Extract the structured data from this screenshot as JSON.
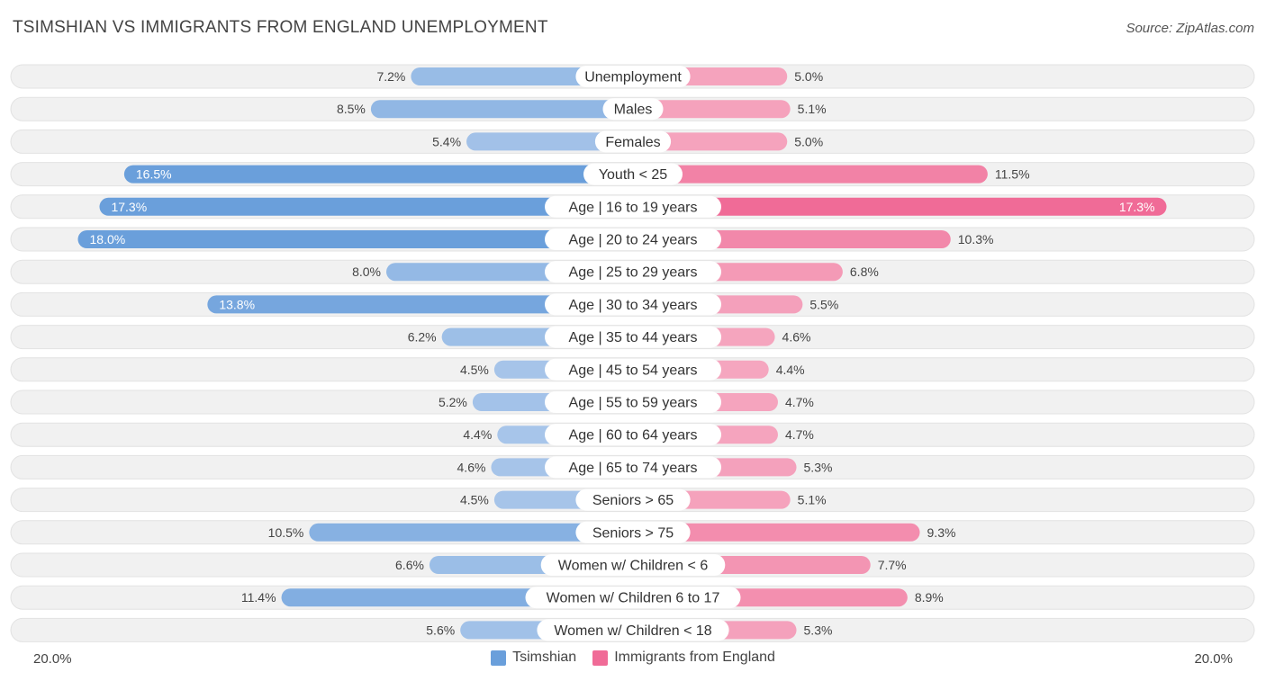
{
  "title": "TSIMSHIAN VS IMMIGRANTS FROM ENGLAND UNEMPLOYMENT",
  "source": "Source: ZipAtlas.com",
  "colors": {
    "left_light": "#a9c6ea",
    "left_dark": "#6a9fdb",
    "right_light": "#f5a8c0",
    "right_dark": "#f06b97",
    "track": "#f0f0f0"
  },
  "chart_data": {
    "type": "bar",
    "orientation": "horizontal-diverging",
    "categories": [
      "Unemployment",
      "Males",
      "Females",
      "Youth < 25",
      "Age | 16 to 19 years",
      "Age | 20 to 24 years",
      "Age | 25 to 29 years",
      "Age | 30 to 34 years",
      "Age | 35 to 44 years",
      "Age | 45 to 54 years",
      "Age | 55 to 59 years",
      "Age | 60 to 64 years",
      "Age | 65 to 74 years",
      "Seniors > 65",
      "Seniors > 75",
      "Women w/ Children < 6",
      "Women w/ Children 6 to 17",
      "Women w/ Children < 18"
    ],
    "series": [
      {
        "name": "Tsimshian",
        "values": [
          7.2,
          8.5,
          5.4,
          16.5,
          17.3,
          18.0,
          8.0,
          13.8,
          6.2,
          4.5,
          5.2,
          4.4,
          4.6,
          4.5,
          10.5,
          6.6,
          11.4,
          5.6
        ],
        "labels": [
          "7.2%",
          "8.5%",
          "5.4%",
          "16.5%",
          "17.3%",
          "18.0%",
          "8.0%",
          "13.8%",
          "6.2%",
          "4.5%",
          "5.2%",
          "4.4%",
          "4.6%",
          "4.5%",
          "10.5%",
          "6.6%",
          "11.4%",
          "5.6%"
        ]
      },
      {
        "name": "Immigrants from England",
        "values": [
          5.0,
          5.1,
          5.0,
          11.5,
          17.3,
          10.3,
          6.8,
          5.5,
          4.6,
          4.4,
          4.7,
          4.7,
          5.3,
          5.1,
          9.3,
          7.7,
          8.9,
          5.3
        ],
        "labels": [
          "5.0%",
          "5.1%",
          "5.0%",
          "11.5%",
          "17.3%",
          "10.3%",
          "6.8%",
          "5.5%",
          "4.6%",
          "4.4%",
          "4.7%",
          "4.7%",
          "5.3%",
          "5.1%",
          "9.3%",
          "7.7%",
          "8.9%",
          "5.3%"
        ]
      }
    ],
    "xlim": [
      0,
      20
    ],
    "axis_left_label": "20.0%",
    "axis_right_label": "20.0%",
    "legend_placement": "bottom-center",
    "grid": false
  }
}
